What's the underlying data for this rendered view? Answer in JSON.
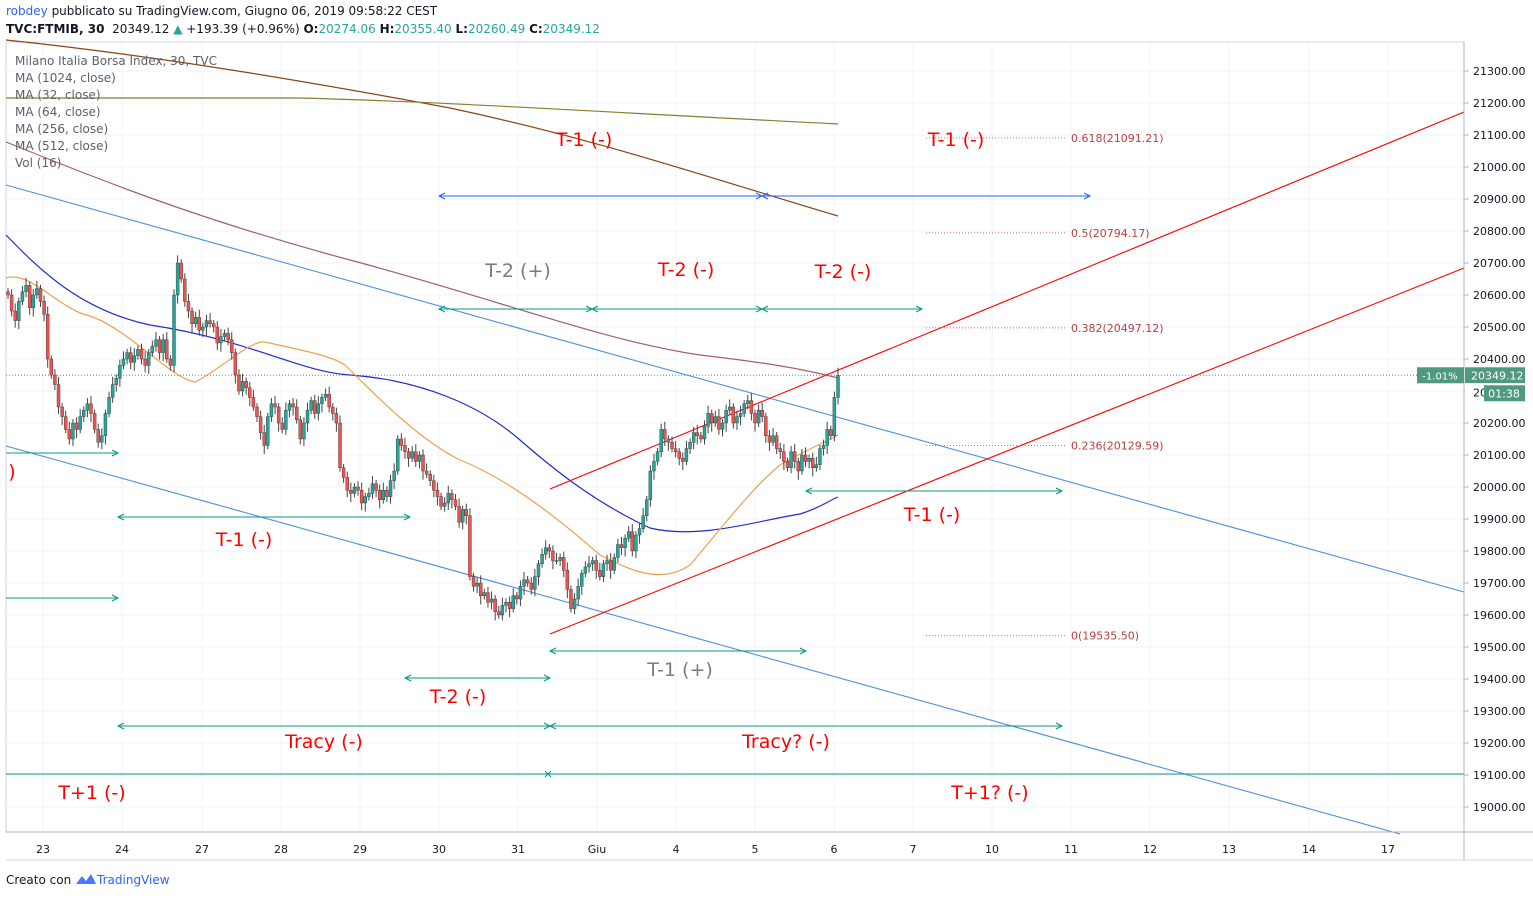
{
  "header": {
    "author": "robdey",
    "published": "pubblicato su TradingView.com, Giugno 06, 2019 09:58:22 CEST",
    "symbol": "TVC:FTMIB, 30",
    "last": "20349.12",
    "change": "+193.39 (+0.96%)",
    "o_label": "O:",
    "o_value": "20274.06",
    "h_label": "H:",
    "h_value": "20355.40",
    "l_label": "L:",
    "l_value": "20260.49",
    "c_label": "C:",
    "c_value": "20349.12"
  },
  "legend": [
    "Milano Italia Borsa Index, 30, TVC",
    "MA (1024, close)",
    "MA (32, close)",
    "MA (64, close)",
    "MA (256, close)",
    "MA (512, close)",
    "Vol (16)"
  ],
  "footer": {
    "created": "Creato con",
    "brand": "TradingView"
  },
  "colors": {
    "up": "#26a69a",
    "down": "#ef5350",
    "annot_red": "#ff0000",
    "annot_gray": "#787b86",
    "teal_arrow": "#089981",
    "blue_arrow": "#2962ff",
    "trend_blue": "#4a90e2",
    "channel_red": "#ff0000",
    "ma_brown": "#8b4513",
    "ma_olive": "#8b7d2a",
    "ma_mauve": "#a06070",
    "ma_blue": "#1e2bd6",
    "ma_orange": "#f0a050"
  },
  "chart_data": {
    "type": "candlestick",
    "title": "Milano Italia Borsa Index, 30, TVC",
    "x_ticks": [
      "23",
      "24",
      "27",
      "28",
      "29",
      "30",
      "31",
      "Giu",
      "4",
      "5",
      "6",
      "7",
      "10",
      "11",
      "12",
      "13",
      "14",
      "17"
    ],
    "y_ticks": [
      19000,
      19100,
      19200,
      19300,
      19400,
      19500,
      19600,
      19700,
      19800,
      19900,
      20000,
      20100,
      20200,
      20300,
      20400,
      20500,
      20600,
      20700,
      20800,
      20900,
      21000,
      21100,
      21200,
      21300
    ],
    "y_tick_labels": [
      "19000.00",
      "19100.00",
      "19200.00",
      "19300.00",
      "19400.00",
      "19500.00",
      "19600.00",
      "19700.00",
      "19800.00",
      "19900.00",
      "20000.00",
      "20100.00",
      "20200.00",
      "20300.00",
      "20400.00",
      "20500.00",
      "20600.00",
      "20700.00",
      "20800.00",
      "20900.00",
      "21000.00",
      "21100.00",
      "21200.00",
      "21300.00"
    ],
    "ylim": [
      18920,
      21400
    ],
    "last_price": {
      "value": 20349.12,
      "label": "20349.12",
      "change": "-1.01%",
      "countdown": "01:38",
      "hidden_label": "20"
    },
    "fibonacci": [
      {
        "level": "0.618",
        "label": "0.618(21091.21)",
        "price": 21091.21
      },
      {
        "level": "0.5",
        "label": "0.5(20794.17)",
        "price": 20794.17
      },
      {
        "level": "0.382",
        "label": "0.382(20497.12)",
        "price": 20497.12
      },
      {
        "level": "0.236",
        "label": "0.236(20129.59)",
        "price": 20129.59
      },
      {
        "level": "0",
        "label": "0(19535.50)",
        "price": 19535.5
      }
    ],
    "annotations": [
      {
        "text": "T-1 (-)",
        "color": "red"
      },
      {
        "text": "T-1 (-)",
        "color": "red"
      },
      {
        "text": "T-2 (+)",
        "color": "gray"
      },
      {
        "text": "T-2 (-)",
        "color": "red"
      },
      {
        "text": "T-2 (-)",
        "color": "red"
      },
      {
        "text": "T-1 (-)",
        "color": "red"
      },
      {
        "text": "T-1 (-)",
        "color": "red"
      },
      {
        "text": "T-1 (+)",
        "color": "gray"
      },
      {
        "text": "T-2 (-)",
        "color": "red"
      },
      {
        "text": "Tracy (-)",
        "color": "red"
      },
      {
        "text": "Tracy? (-)",
        "color": "red"
      },
      {
        "text": "T+1 (-)",
        "color": "red"
      },
      {
        "text": "T+1? (-)",
        "color": "red"
      },
      {
        "text": ")",
        "color": "red"
      }
    ],
    "candles_close": [
      20600,
      20550,
      20520,
      20580,
      20610,
      20630,
      20560,
      20600,
      20620,
      20580,
      20540,
      20400,
      20350,
      20320,
      20250,
      20220,
      20180,
      20150,
      20200,
      20180,
      20220,
      20240,
      20260,
      20230,
      20180,
      20140,
      20160,
      20230,
      20280,
      20320,
      20340,
      20380,
      20400,
      20420,
      20390,
      20410,
      20430,
      20400,
      20380,
      20420,
      20440,
      20460,
      20420,
      20460,
      20400,
      20380,
      20600,
      20700,
      20650,
      20580,
      20550,
      20510,
      20530,
      20490,
      20500,
      20520,
      20510,
      20500,
      20450,
      20470,
      20480,
      20460,
      20420,
      20350,
      20300,
      20330,
      20310,
      20280,
      20250,
      20220,
      20170,
      20130,
      20220,
      20260,
      20250,
      20200,
      20180,
      20240,
      20260,
      20250,
      20210,
      20150,
      20200,
      20240,
      20270,
      20230,
      20260,
      20280,
      20290,
      20250,
      20230,
      20200,
      20060,
      20030,
      19990,
      19980,
      20000,
      19990,
      19950,
      19970,
      19980,
      20010,
      19990,
      19960,
      19990,
      19970,
      20020,
      20050,
      20150,
      20130,
      20110,
      20090,
      20110,
      20080,
      20100,
      20050,
      20040,
      20020,
      19990,
      19970,
      19940,
      19950,
      19980,
      19960,
      19940,
      19890,
      19930,
      19910,
      19720,
      19690,
      19700,
      19660,
      19670,
      19640,
      19650,
      19610,
      19600,
      19630,
      19640,
      19620,
      19660,
      19650,
      19690,
      19710,
      19700,
      19680,
      19720,
      19760,
      19790,
      19810,
      19800,
      19770,
      19770,
      19780,
      19740,
      19680,
      19620,
      19650,
      19690,
      19730,
      19750,
      19760,
      19770,
      19740,
      19720,
      19760,
      19770,
      19740,
      19780,
      19820,
      19810,
      19840,
      19860,
      19800,
      19850,
      19870,
      19910,
      19960,
      20050,
      20080,
      20110,
      20180,
      20150,
      20140,
      20120,
      20110,
      20090,
      20080,
      20120,
      20140,
      20170,
      20160,
      20150,
      20190,
      20230,
      20200,
      20220,
      20180,
      20200,
      20240,
      20250,
      20200,
      20220,
      20230,
      20260,
      20270,
      20230,
      20200,
      20240,
      20220,
      20160,
      20140,
      20160,
      20120,
      20110,
      20080,
      20060,
      20110,
      20080,
      20050,
      20100,
      20080,
      20090,
      20060,
      20070,
      20120,
      20130,
      20180,
      20160,
      20280,
      20349
    ]
  }
}
